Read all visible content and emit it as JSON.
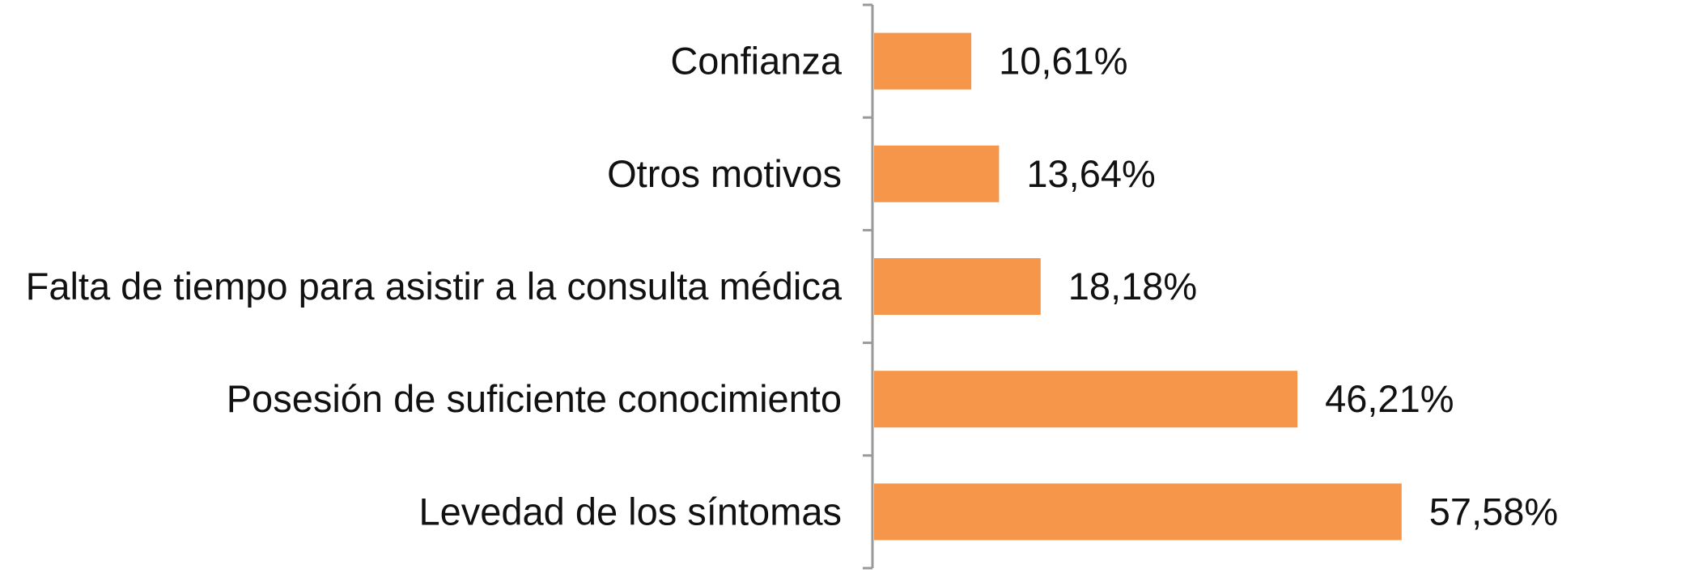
{
  "chart_data": {
    "type": "bar",
    "orientation": "horizontal",
    "categories": [
      "Confianza",
      "Otros motivos",
      "Falta de tiempo para asistir a la consulta médica",
      "Posesión de suficiente conocimiento",
      "Levedad de los síntomas"
    ],
    "values": [
      10.61,
      13.64,
      18.18,
      46.21,
      57.58
    ],
    "value_labels": [
      "10,61%",
      "13,64%",
      "18,18%",
      "46,21%",
      "57,58%"
    ],
    "unit": "%",
    "title": "",
    "xlabel": "",
    "ylabel": "",
    "xlim": [
      0,
      60
    ],
    "grid": false,
    "legend": "none",
    "bar_color": "#F5964A",
    "axis_color": "#9A9A9A"
  }
}
